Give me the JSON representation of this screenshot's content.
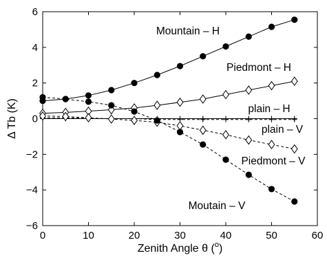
{
  "chart_data": {
    "type": "line",
    "title": "",
    "xlabel": "Zenith Angle θ (",
    "xlabel_unit_superscript": "o",
    "xlabel_suffix": ")",
    "ylabel": "Δ Tb (K)",
    "xlim": [
      0,
      60
    ],
    "ylim": [
      -6,
      6
    ],
    "x_ticks": [
      0,
      10,
      20,
      30,
      40,
      50,
      60
    ],
    "y_ticks": [
      -6,
      -4,
      -2,
      0,
      2,
      4,
      6
    ],
    "x_tick_labels": [
      "0",
      "10",
      "20",
      "30",
      "40",
      "50",
      "60"
    ],
    "y_tick_labels": [
      "−6",
      "−4",
      "−2",
      "0",
      "2",
      "4",
      "6"
    ],
    "grid": false,
    "legend": "none (series labelled inline)",
    "x": [
      0,
      5,
      10,
      15,
      20,
      25,
      30,
      35,
      40,
      45,
      50,
      55
    ],
    "series": [
      {
        "name": "Mountain – H",
        "marker": "filled-circle",
        "line_style": "solid",
        "color": "#000000",
        "values": [
          1.0,
          1.1,
          1.3,
          1.6,
          2.0,
          2.45,
          2.95,
          3.5,
          4.05,
          4.6,
          5.15,
          5.55
        ]
      },
      {
        "name": "Piedmont – H",
        "marker": "open-diamond",
        "line_style": "solid",
        "color": "#000000",
        "values": [
          0.3,
          0.35,
          0.42,
          0.5,
          0.6,
          0.75,
          0.92,
          1.1,
          1.35,
          1.6,
          1.85,
          2.1
        ]
      },
      {
        "name": "plain – H",
        "marker": "plus",
        "line_style": "solid",
        "color": "#000000",
        "values": [
          0.0,
          0.0,
          0.0,
          0.0,
          0.0,
          0.0,
          0.0,
          0.0,
          0.0,
          0.0,
          0.0,
          0.0
        ]
      },
      {
        "name": "plain – V",
        "marker": "plus",
        "line_style": "dashed",
        "color": "#000000",
        "values": [
          0.05,
          0.05,
          0.02,
          0.0,
          0.0,
          -0.05,
          -0.05,
          -0.05,
          -0.05,
          -0.05,
          -0.05,
          -0.05
        ]
      },
      {
        "name": "Piedmont – V",
        "marker": "open-diamond",
        "line_style": "dashed",
        "color": "#000000",
        "values": [
          0.15,
          0.12,
          0.05,
          -0.02,
          -0.1,
          -0.2,
          -0.4,
          -0.65,
          -0.9,
          -1.2,
          -1.45,
          -1.7
        ]
      },
      {
        "name": "Moutain – V",
        "marker": "filled-circle",
        "line_style": "dashed",
        "color": "#000000",
        "values": [
          1.2,
          1.1,
          0.95,
          0.75,
          0.4,
          -0.1,
          -0.75,
          -1.45,
          -2.3,
          -3.15,
          -3.95,
          -4.65
        ]
      }
    ],
    "annotations": [
      {
        "text": "Mountain – H",
        "near_series": "Mountain – H"
      },
      {
        "text": "Piedmont – H",
        "near_series": "Piedmont – H"
      },
      {
        "text": "plain – H",
        "near_series": "plain – H"
      },
      {
        "text": "plain – V",
        "near_series": "plain – V"
      },
      {
        "text": "Piedmont – V",
        "near_series": "Piedmont – V"
      },
      {
        "text": "Moutain – V",
        "near_series": "Moutain – V"
      }
    ]
  }
}
